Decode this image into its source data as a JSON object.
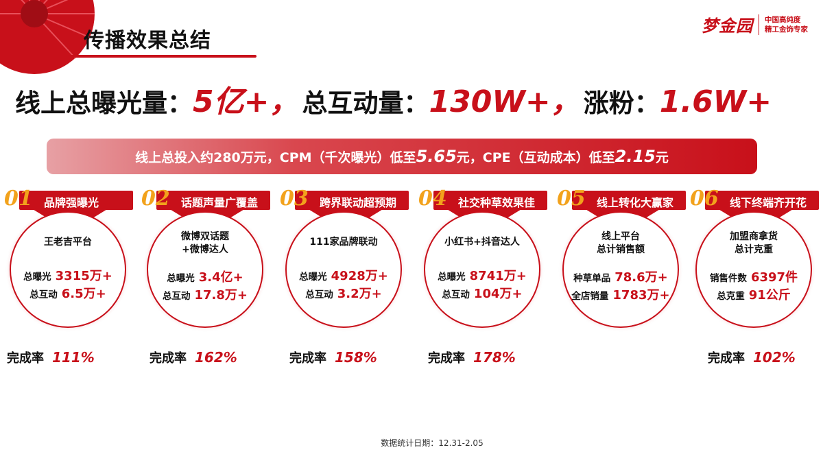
{
  "title": "传播效果总结",
  "logo": {
    "mark": "梦金园",
    "tag_line1": "中国高纯度",
    "tag_line2": "精工金饰专家"
  },
  "headline": {
    "exposure_label": "线上总曝光量：",
    "exposure_value": "5亿+，",
    "interaction_label": "总互动量：",
    "interaction_value": "130W+，",
    "fans_label": "涨粉：",
    "fans_value": "1.6W+"
  },
  "banner": {
    "part1": "线上总投入约280万元，CPM（千次曝光）低至",
    "cpm": "5.65",
    "part2": "元，CPE（互动成本）低至",
    "cpe": "2.15",
    "part3": "元"
  },
  "cards": [
    {
      "num": "01",
      "label": "品牌强曝光",
      "title": "王老吉平台",
      "rows": [
        {
          "label": "总曝光",
          "value": "3315万+"
        },
        {
          "label": "总互动",
          "value": "6.5万+"
        }
      ],
      "rate_label": "完成率",
      "rate": "111%"
    },
    {
      "num": "02",
      "label": "话题声量广覆盖",
      "title": "微博双话题\n+微博达人",
      "rows": [
        {
          "label": "总曝光",
          "value": "3.4亿+"
        },
        {
          "label": "总互动",
          "value": "17.8万+"
        }
      ],
      "rate_label": "完成率",
      "rate": "162%"
    },
    {
      "num": "03",
      "label": "跨界联动超预期",
      "title": "111家品牌联动",
      "rows": [
        {
          "label": "总曝光",
          "value": "4928万+"
        },
        {
          "label": "总互动",
          "value": "3.2万+"
        }
      ],
      "rate_label": "完成率",
      "rate": "158%"
    },
    {
      "num": "04",
      "label": "社交种草效果佳",
      "title": "小红书+抖音达人",
      "rows": [
        {
          "label": "总曝光",
          "value": "8741万+"
        },
        {
          "label": "总互动",
          "value": "104万+"
        }
      ],
      "rate_label": "完成率",
      "rate": "178%"
    },
    {
      "num": "05",
      "label": "线上转化大赢家",
      "title": "线上平台\n总计销售额",
      "rows": [
        {
          "label": "种草单品",
          "value": "78.6万+"
        },
        {
          "label": "全店销量",
          "value": "1783万+"
        }
      ],
      "rate_label": "",
      "rate": ""
    },
    {
      "num": "06",
      "label": "线下终端齐开花",
      "title": "加盟商拿货\n总计克重",
      "rows": [
        {
          "label": "销售件数",
          "value": "6397件"
        },
        {
          "label": "总克重",
          "value": "91公斤"
        }
      ],
      "rate_label": "完成率",
      "rate": "102%"
    }
  ],
  "footnote": "数据统计日期：12.31-2.05",
  "colors": {
    "accent": "#c8101a",
    "number": "#f2a21c"
  }
}
